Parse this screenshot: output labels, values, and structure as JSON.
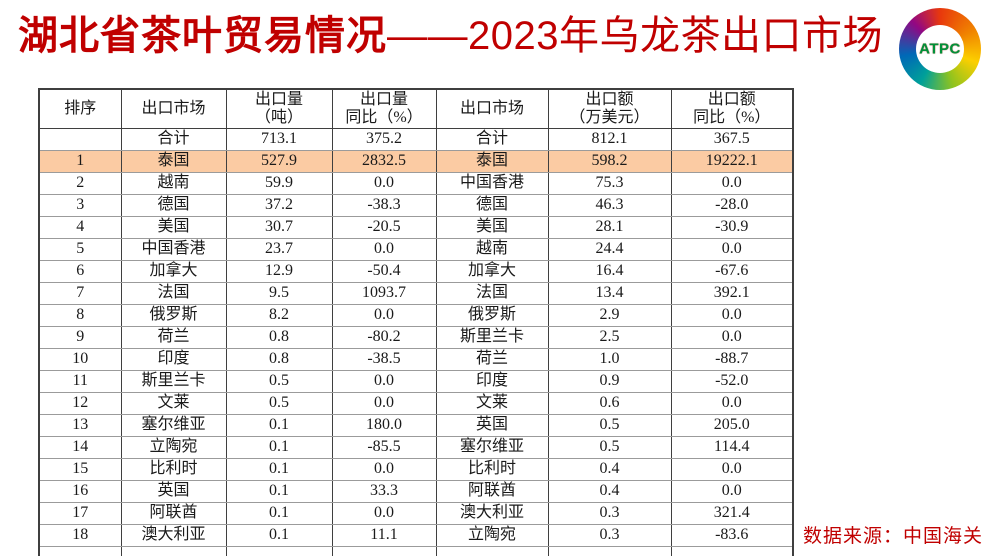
{
  "title": {
    "main": "湖北省茶叶贸易情况",
    "sub": "——2023年乌龙茶出口市场"
  },
  "logo": {
    "label": "ATPC"
  },
  "source_note": "数据来源：中国海关",
  "colors": {
    "title_text": "#c00000",
    "source_note_text": "#c00000",
    "highlight_row_bg": "#fbcba3",
    "logo_ring": [
      "#e8380d",
      "#f08300",
      "#fccf00",
      "#8fc31f",
      "#00a099",
      "#0068b7",
      "#920783"
    ],
    "logo_label_text": "#00913a"
  },
  "table": {
    "headers": [
      "排序",
      "出口市场",
      "出口量\n（吨）",
      "出口量\n同比（%）",
      "出口市场",
      "出口额\n（万美元）",
      "出口额\n同比（%）"
    ],
    "rows": [
      [
        "",
        "合计",
        "713.1",
        "375.2",
        "合计",
        "812.1",
        "367.5"
      ],
      [
        "1",
        "泰国",
        "527.9",
        "2832.5",
        "泰国",
        "598.2",
        "19222.1"
      ],
      [
        "2",
        "越南",
        "59.9",
        "0.0",
        "中国香港",
        "75.3",
        "0.0"
      ],
      [
        "3",
        "德国",
        "37.2",
        "-38.3",
        "德国",
        "46.3",
        "-28.0"
      ],
      [
        "4",
        "美国",
        "30.7",
        "-20.5",
        "美国",
        "28.1",
        "-30.9"
      ],
      [
        "5",
        "中国香港",
        "23.7",
        "0.0",
        "越南",
        "24.4",
        "0.0"
      ],
      [
        "6",
        "加拿大",
        "12.9",
        "-50.4",
        "加拿大",
        "16.4",
        "-67.6"
      ],
      [
        "7",
        "法国",
        "9.5",
        "1093.7",
        "法国",
        "13.4",
        "392.1"
      ],
      [
        "8",
        "俄罗斯",
        "8.2",
        "0.0",
        "俄罗斯",
        "2.9",
        "0.0"
      ],
      [
        "9",
        "荷兰",
        "0.8",
        "-80.2",
        "斯里兰卡",
        "2.5",
        "0.0"
      ],
      [
        "10",
        "印度",
        "0.8",
        "-38.5",
        "荷兰",
        "1.0",
        "-88.7"
      ],
      [
        "11",
        "斯里兰卡",
        "0.5",
        "0.0",
        "印度",
        "0.9",
        "-52.0"
      ],
      [
        "12",
        "文莱",
        "0.5",
        "0.0",
        "文莱",
        "0.6",
        "0.0"
      ],
      [
        "13",
        "塞尔维亚",
        "0.1",
        "180.0",
        "英国",
        "0.5",
        "205.0"
      ],
      [
        "14",
        "立陶宛",
        "0.1",
        "-85.5",
        "塞尔维亚",
        "0.5",
        "114.4"
      ],
      [
        "15",
        "比利时",
        "0.1",
        "0.0",
        "比利时",
        "0.4",
        "0.0"
      ],
      [
        "16",
        "英国",
        "0.1",
        "33.3",
        "阿联酋",
        "0.4",
        "0.0"
      ],
      [
        "17",
        "阿联酋",
        "0.1",
        "0.0",
        "澳大利亚",
        "0.3",
        "321.4"
      ],
      [
        "18",
        "澳大利亚",
        "0.1",
        "11.1",
        "立陶宛",
        "0.3",
        "-83.6"
      ]
    ],
    "highlight_row_index": 1,
    "partial_row_visible": true
  }
}
